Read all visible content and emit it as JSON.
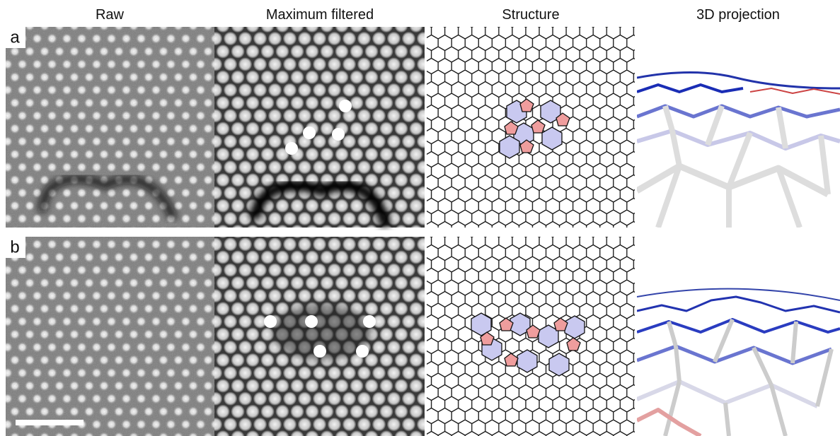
{
  "columns": [
    "Raw",
    "Maximum filtered",
    "Structure",
    "3D projection"
  ],
  "rows": [
    "a",
    "b"
  ]
}
